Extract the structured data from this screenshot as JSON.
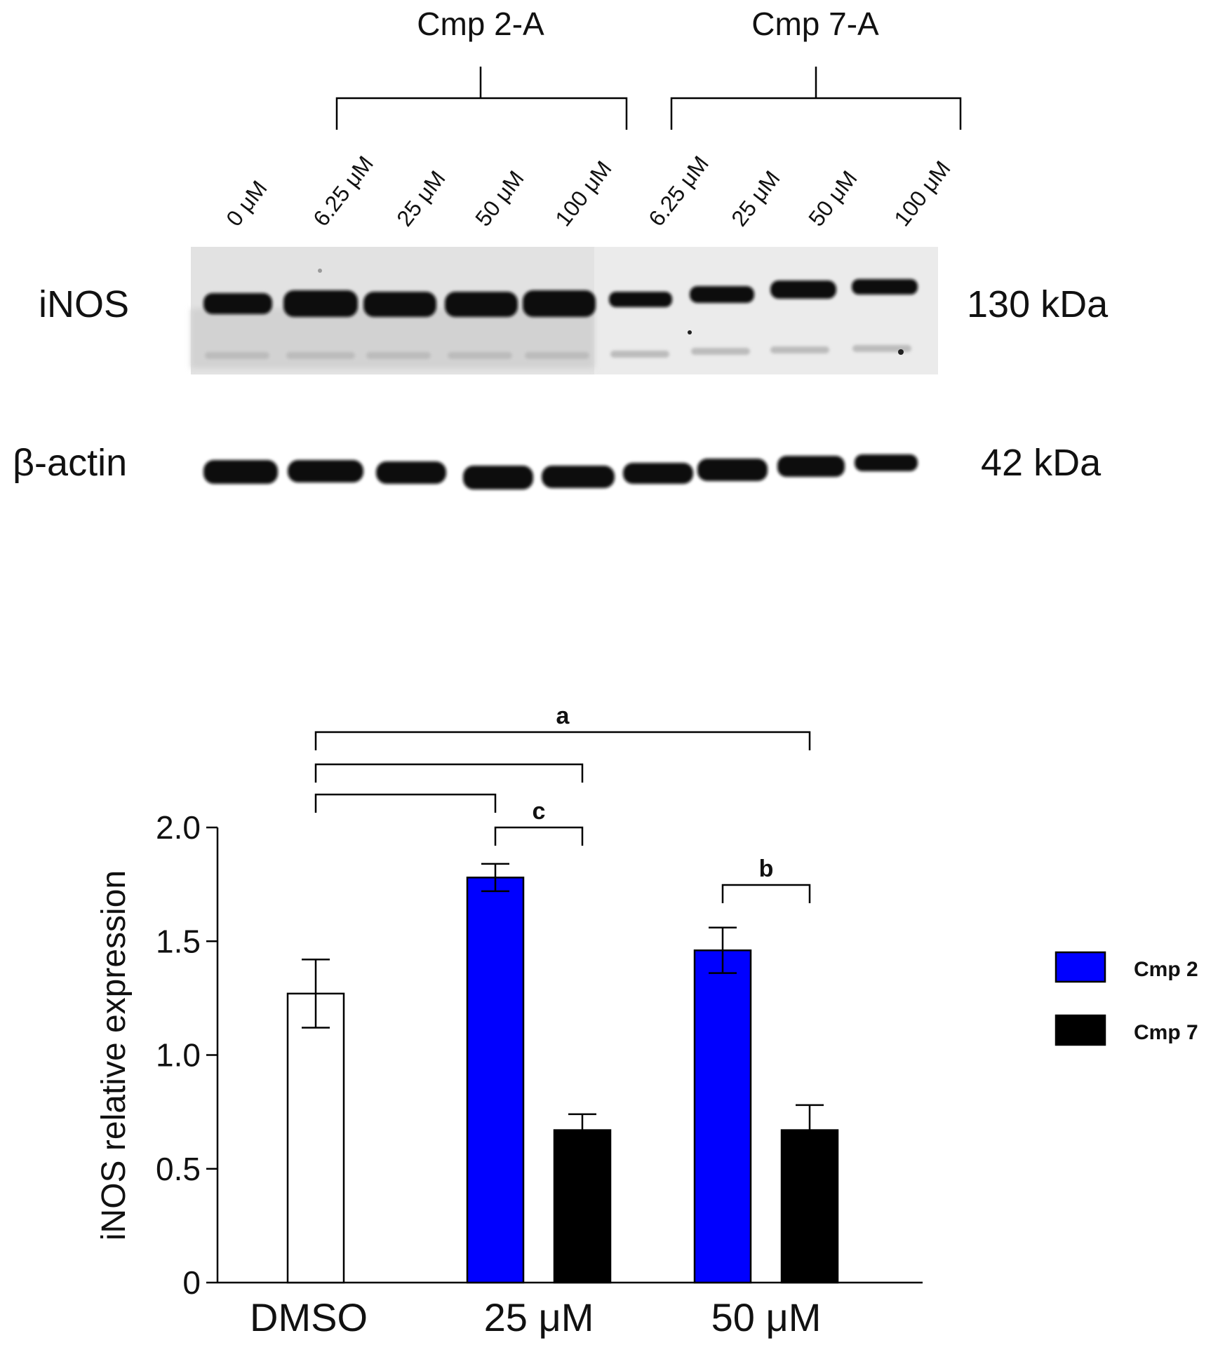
{
  "blot": {
    "groups": [
      {
        "label": "Cmp 2-A"
      },
      {
        "label": "Cmp 7-A"
      }
    ],
    "lane_labels": [
      "0 μM",
      "6.25 μM",
      "25 μM",
      "50 μM",
      "100 μM",
      "6.25 μM",
      "25 μM",
      "50 μM",
      "100 μM"
    ],
    "rows": [
      {
        "label": "iNOS",
        "size": "130 kDa"
      },
      {
        "label": "β-actin",
        "size": "42 kDa"
      }
    ]
  },
  "chart_data": {
    "type": "bar",
    "categories": [
      "DMSO",
      "25 μM",
      "50 μM"
    ],
    "ylabel": "iNOS relative expression",
    "ylim": [
      0,
      2.0
    ],
    "yticks": [
      "0",
      "0.5",
      "1.0",
      "1.5",
      "2.0"
    ],
    "control": {
      "category": "DMSO",
      "value": 1.27,
      "error": 0.15
    },
    "series": [
      {
        "name": "Cmp 2",
        "values": [
          null,
          1.78,
          1.46
        ],
        "errors": [
          null,
          0.06,
          0.1
        ]
      },
      {
        "name": "Cmp 7",
        "values": [
          null,
          0.67,
          0.67
        ],
        "errors": [
          null,
          0.07,
          0.11
        ]
      }
    ],
    "legend_position": "right",
    "significance": [
      {
        "label": "a",
        "from": "DMSO",
        "to": "50 μM Cmp 7"
      },
      {
        "label": "",
        "from": "DMSO",
        "to": "25 μM Cmp 7"
      },
      {
        "label": "",
        "from": "DMSO",
        "to": "25 μM Cmp 2"
      },
      {
        "label": "c",
        "from": "25 μM Cmp 2",
        "to": "25 μM Cmp 7"
      },
      {
        "label": "b",
        "from": "50 μM Cmp 2",
        "to": "50 μM Cmp 7"
      }
    ],
    "colors": {
      "control": "#ffffff",
      "Cmp 2": "#0000ff",
      "Cmp 7": "#000000"
    }
  }
}
